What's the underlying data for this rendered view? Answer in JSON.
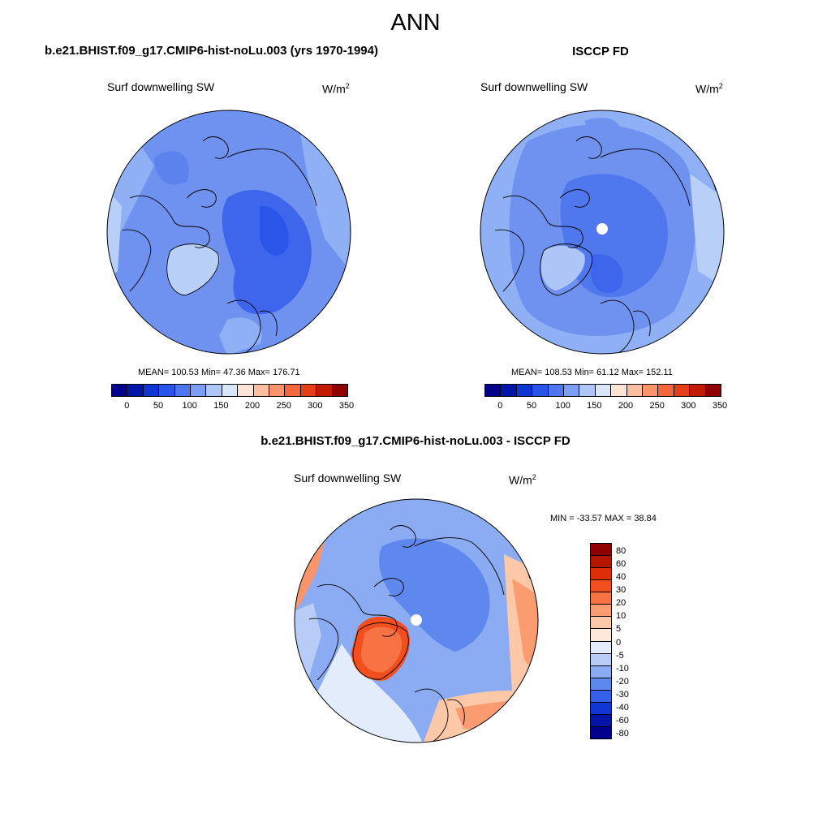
{
  "figure": {
    "title": "ANN",
    "case_title": "b.e21.BHIST.f09_g17.CMIP6-hist-noLu.003 (yrs 1970-1994)",
    "obs_title": "ISCCP FD",
    "diff_title": "b.e21.BHIST.f09_g17.CMIP6-hist-noLu.003 - ISCCP FD"
  },
  "chart_data": [
    {
      "type": "heatmap",
      "projection": "north polar stereographic",
      "panel": "model",
      "variable": "Surf downwelling SW",
      "units_base": "W/m",
      "units_exp": "2",
      "stats": {
        "mean": 100.53,
        "min": 47.36,
        "max": 176.71
      },
      "stats_text": "MEAN= 100.53  Min=  47.36  Max= 176.71",
      "colorbar": {
        "orientation": "horizontal",
        "tick_labels": [
          "0",
          "50",
          "100",
          "150",
          "200",
          "250",
          "300",
          "350"
        ],
        "colors": [
          "#00008c",
          "#0016a8",
          "#0f36d3",
          "#2954e8",
          "#4d76f0",
          "#7c9ef4",
          "#adc5f7",
          "#d9e6fa",
          "#fde3d5",
          "#fbbfa0",
          "#f9946b",
          "#f4663b",
          "#e63e19",
          "#c11b05",
          "#8f0000"
        ]
      }
    },
    {
      "type": "heatmap",
      "projection": "north polar stereographic",
      "panel": "obs",
      "variable": "Surf downwelling SW",
      "units_base": "W/m",
      "units_exp": "2",
      "stats": {
        "mean": 108.53,
        "min": 61.12,
        "max": 152.11
      },
      "stats_text": "MEAN= 108.53  Min=  61.12  Max= 152.11",
      "colorbar": {
        "orientation": "horizontal",
        "tick_labels": [
          "0",
          "50",
          "100",
          "150",
          "200",
          "250",
          "300",
          "350"
        ],
        "colors": [
          "#00008c",
          "#0016a8",
          "#0f36d3",
          "#2954e8",
          "#4d76f0",
          "#7c9ef4",
          "#adc5f7",
          "#d9e6fa",
          "#fde3d5",
          "#fbbfa0",
          "#f9946b",
          "#f4663b",
          "#e63e19",
          "#c11b05",
          "#8f0000"
        ]
      }
    },
    {
      "type": "heatmap",
      "projection": "north polar stereographic",
      "panel": "difference",
      "variable": "Surf downwelling SW",
      "units_base": "W/m",
      "units_exp": "2",
      "stats": {
        "min": -33.57,
        "max": 38.84
      },
      "stats_text": "MIN = -33.57 MAX =  38.84",
      "colorbar": {
        "orientation": "vertical",
        "tick_labels": [
          "80",
          "60",
          "40",
          "30",
          "20",
          "10",
          "5",
          "0",
          "-5",
          "-10",
          "-20",
          "-30",
          "-40",
          "-60",
          "-80"
        ],
        "colors": [
          "#8f0000",
          "#b51600",
          "#dd2e08",
          "#f24e1e",
          "#f77343",
          "#fa9c70",
          "#fcc8a8",
          "#fde8da",
          "#e2ecfb",
          "#b7cdf7",
          "#8bacf2",
          "#5e88ee",
          "#3460ea",
          "#1037d5",
          "#0014a8",
          "#00008c"
        ]
      }
    }
  ]
}
